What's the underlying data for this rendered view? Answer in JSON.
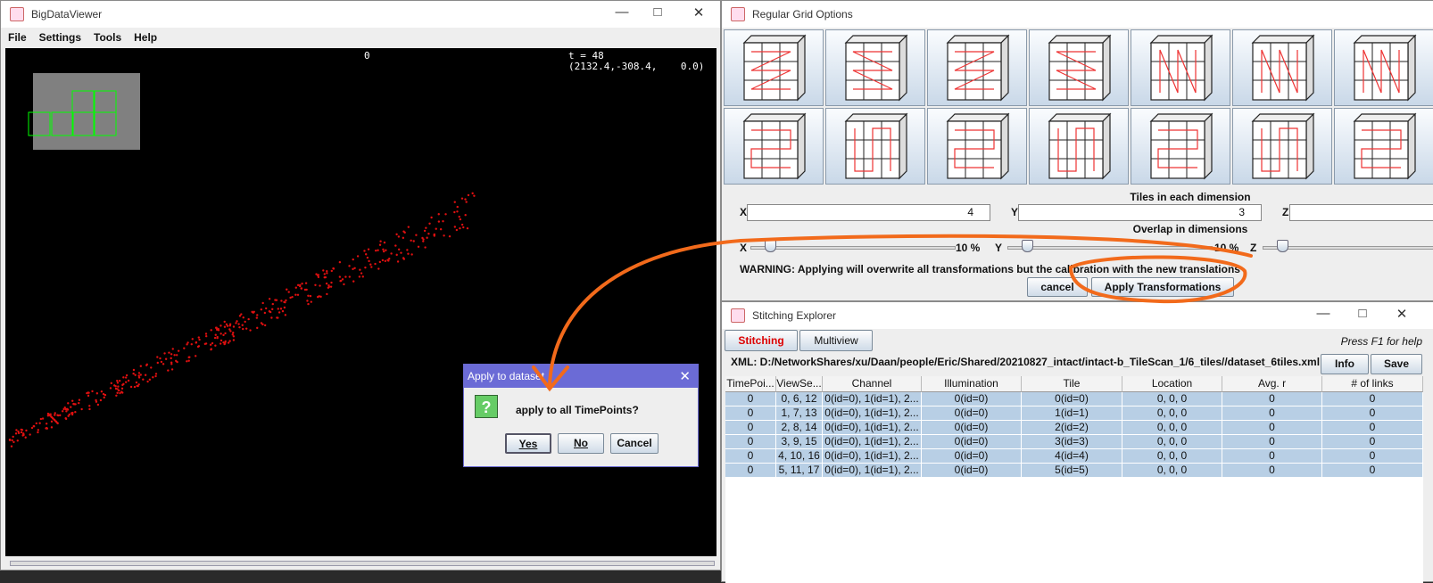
{
  "bdv": {
    "title": "BigDataViewer",
    "menu": [
      "File",
      "Settings",
      "Tools",
      "Help"
    ],
    "overlay": {
      "source": "0",
      "time": "t = 48",
      "position": "(2132.4,-308.4,    0.0)"
    }
  },
  "dialog": {
    "title": "Apply to dataset",
    "message": "apply to all TimePoints?",
    "buttons": [
      "Yes",
      "No",
      "Cancel"
    ]
  },
  "grid_options": {
    "title": "Regular Grid Options",
    "tiles_label": "Tiles in each dimension",
    "tiles": [
      {
        "label": "X",
        "value": "4"
      },
      {
        "label": "Y",
        "value": "3"
      },
      {
        "label": "Z"
      }
    ],
    "overlap_label": "Overlap in dimensions",
    "overlap": [
      {
        "label": "X",
        "value": "10 %"
      },
      {
        "label": "Y",
        "value": "10 %"
      },
      {
        "label": "Z"
      }
    ],
    "warning": "WARNING: Applying will overwrite all transformations but the calibration with the new translations",
    "buttons": [
      "cancel",
      "Apply Transformations"
    ]
  },
  "explorer": {
    "title": "Stitching Explorer",
    "tabs": [
      "Stitching",
      "Multiview"
    ],
    "help": "Press F1 for help",
    "xml": "XML: D:/NetworkShares/xu/Daan/people/Eric/Shared/20210827_intact/intact-b_TileScan_1/6_tiles//dataset_6tiles.xml",
    "buttons": [
      "Info",
      "Save"
    ],
    "table": {
      "headers": [
        "TimePoi...",
        "ViewSe...",
        "Channel",
        "Illumination",
        "Tile",
        "Location",
        "Avg. r",
        "# of links"
      ],
      "rows": [
        [
          "0",
          "0, 6, 12",
          "0(id=0), 1(id=1), 2...",
          "0(id=0)",
          "0(id=0)",
          "0, 0, 0",
          "0",
          "0"
        ],
        [
          "0",
          "1, 7, 13",
          "0(id=0), 1(id=1), 2...",
          "0(id=0)",
          "1(id=1)",
          "0, 0, 0",
          "0",
          "0"
        ],
        [
          "0",
          "2, 8, 14",
          "0(id=0), 1(id=1), 2...",
          "0(id=0)",
          "2(id=2)",
          "0, 0, 0",
          "0",
          "0"
        ],
        [
          "0",
          "3, 9, 15",
          "0(id=0), 1(id=1), 2...",
          "0(id=0)",
          "3(id=3)",
          "0, 0, 0",
          "0",
          "0"
        ],
        [
          "0",
          "4, 10, 16",
          "0(id=0), 1(id=1), 2...",
          "0(id=0)",
          "4(id=4)",
          "0, 0, 0",
          "0",
          "0"
        ],
        [
          "0",
          "5, 11, 17",
          "0(id=0), 1(id=1), 2...",
          "0(id=0)",
          "5(id=5)",
          "0, 0, 0",
          "0",
          "0"
        ]
      ]
    }
  }
}
